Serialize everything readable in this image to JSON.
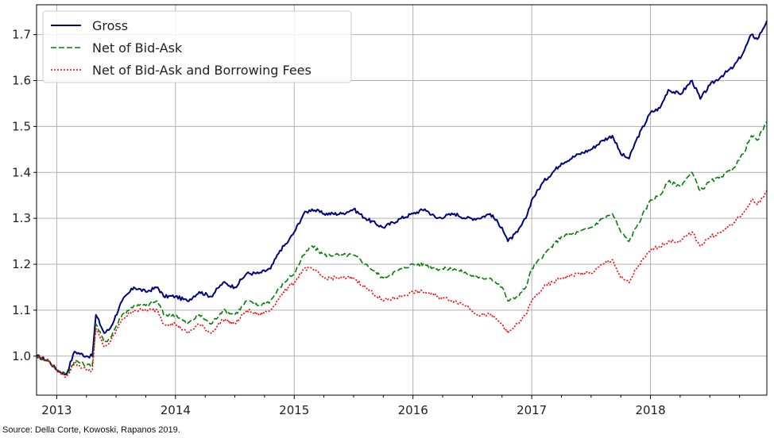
{
  "chart_data": {
    "type": "line",
    "xlim": [
      2012.83,
      2018.98
    ],
    "ylim": [
      0.915,
      1.765
    ],
    "x_ticks": [
      2013,
      2014,
      2015,
      2016,
      2017,
      2018
    ],
    "x_tick_labels": [
      "2013",
      "2014",
      "2015",
      "2016",
      "2017",
      "2018"
    ],
    "y_ticks": [
      1.0,
      1.1,
      1.2,
      1.3,
      1.4,
      1.5,
      1.6,
      1.7
    ],
    "y_tick_labels": [
      "1.0",
      "1.1",
      "1.2",
      "1.3",
      "1.4",
      "1.5",
      "1.6",
      "1.7"
    ],
    "grid": true,
    "legend_position": "top-left",
    "series": [
      {
        "name": "Gross",
        "color": "#00007f",
        "style": "solid",
        "x": [
          2012.83,
          2012.93,
          2013.0,
          2013.08,
          2013.15,
          2013.25,
          2013.3,
          2013.33,
          2013.4,
          2013.45,
          2013.55,
          2013.65,
          2013.75,
          2013.85,
          2013.9,
          2014.0,
          2014.1,
          2014.2,
          2014.3,
          2014.4,
          2014.5,
          2014.6,
          2014.7,
          2014.8,
          2014.88,
          2014.95,
          2015.0,
          2015.08,
          2015.15,
          2015.25,
          2015.4,
          2015.5,
          2015.6,
          2015.75,
          2015.9,
          2016.0,
          2016.1,
          2016.2,
          2016.35,
          2016.45,
          2016.55,
          2016.65,
          2016.75,
          2016.8,
          2016.88,
          2016.95,
          2017.0,
          2017.1,
          2017.25,
          2017.4,
          2017.5,
          2017.6,
          2017.68,
          2017.75,
          2017.82,
          2017.88,
          2018.0,
          2018.08,
          2018.15,
          2018.25,
          2018.35,
          2018.42,
          2018.5,
          2018.6,
          2018.7,
          2018.78,
          2018.85,
          2018.9,
          2018.98
        ],
        "y": [
          1.0,
          0.99,
          0.97,
          0.96,
          1.01,
          1.0,
          1.0,
          1.09,
          1.05,
          1.06,
          1.12,
          1.15,
          1.14,
          1.15,
          1.13,
          1.13,
          1.12,
          1.14,
          1.13,
          1.16,
          1.15,
          1.18,
          1.18,
          1.19,
          1.23,
          1.25,
          1.27,
          1.31,
          1.32,
          1.31,
          1.31,
          1.32,
          1.3,
          1.28,
          1.3,
          1.31,
          1.32,
          1.3,
          1.31,
          1.3,
          1.3,
          1.31,
          1.28,
          1.25,
          1.27,
          1.3,
          1.34,
          1.38,
          1.42,
          1.44,
          1.45,
          1.47,
          1.48,
          1.44,
          1.43,
          1.47,
          1.53,
          1.54,
          1.58,
          1.57,
          1.6,
          1.56,
          1.59,
          1.61,
          1.63,
          1.66,
          1.7,
          1.69,
          1.73
        ]
      },
      {
        "name": "Net of Bid-Ask",
        "color": "#008000",
        "style": "dashed",
        "x": [
          2012.83,
          2012.93,
          2013.0,
          2013.08,
          2013.15,
          2013.25,
          2013.3,
          2013.33,
          2013.4,
          2013.45,
          2013.55,
          2013.65,
          2013.75,
          2013.85,
          2013.9,
          2014.0,
          2014.1,
          2014.2,
          2014.3,
          2014.4,
          2014.5,
          2014.6,
          2014.7,
          2014.8,
          2014.88,
          2014.95,
          2015.0,
          2015.08,
          2015.15,
          2015.25,
          2015.4,
          2015.5,
          2015.6,
          2015.75,
          2015.9,
          2016.0,
          2016.1,
          2016.2,
          2016.35,
          2016.45,
          2016.55,
          2016.65,
          2016.75,
          2016.8,
          2016.88,
          2016.95,
          2017.0,
          2017.1,
          2017.25,
          2017.4,
          2017.5,
          2017.6,
          2017.68,
          2017.75,
          2017.82,
          2017.88,
          2018.0,
          2018.08,
          2018.15,
          2018.25,
          2018.35,
          2018.42,
          2018.5,
          2018.6,
          2018.7,
          2018.78,
          2018.85,
          2018.9,
          2018.98
        ],
        "y": [
          1.0,
          0.99,
          0.97,
          0.96,
          0.99,
          0.98,
          0.98,
          1.07,
          1.03,
          1.04,
          1.09,
          1.11,
          1.11,
          1.12,
          1.09,
          1.09,
          1.07,
          1.09,
          1.07,
          1.1,
          1.09,
          1.12,
          1.11,
          1.12,
          1.15,
          1.17,
          1.18,
          1.22,
          1.24,
          1.22,
          1.22,
          1.22,
          1.2,
          1.17,
          1.19,
          1.2,
          1.2,
          1.19,
          1.19,
          1.18,
          1.17,
          1.17,
          1.15,
          1.12,
          1.13,
          1.15,
          1.19,
          1.22,
          1.26,
          1.27,
          1.28,
          1.3,
          1.31,
          1.27,
          1.25,
          1.28,
          1.34,
          1.35,
          1.38,
          1.37,
          1.4,
          1.36,
          1.38,
          1.39,
          1.41,
          1.44,
          1.48,
          1.47,
          1.51
        ]
      },
      {
        "name": "Net of Bid-Ask and Borrowing Fees",
        "color": "#ff0000",
        "style": "dotted",
        "x": [
          2012.83,
          2012.93,
          2013.0,
          2013.08,
          2013.15,
          2013.25,
          2013.3,
          2013.33,
          2013.4,
          2013.45,
          2013.55,
          2013.65,
          2013.75,
          2013.85,
          2013.9,
          2014.0,
          2014.1,
          2014.2,
          2014.3,
          2014.4,
          2014.5,
          2014.6,
          2014.7,
          2014.8,
          2014.88,
          2014.95,
          2015.0,
          2015.08,
          2015.15,
          2015.25,
          2015.4,
          2015.5,
          2015.6,
          2015.75,
          2015.9,
          2016.0,
          2016.1,
          2016.2,
          2016.35,
          2016.45,
          2016.55,
          2016.65,
          2016.75,
          2016.8,
          2016.88,
          2016.95,
          2017.0,
          2017.1,
          2017.25,
          2017.4,
          2017.5,
          2017.6,
          2017.68,
          2017.75,
          2017.82,
          2017.88,
          2018.0,
          2018.08,
          2018.15,
          2018.25,
          2018.35,
          2018.42,
          2018.5,
          2018.6,
          2018.7,
          2018.78,
          2018.85,
          2018.9,
          2018.98
        ],
        "y": [
          1.0,
          0.99,
          0.97,
          0.955,
          0.985,
          0.97,
          0.97,
          1.06,
          1.02,
          1.03,
          1.08,
          1.1,
          1.1,
          1.1,
          1.07,
          1.07,
          1.05,
          1.07,
          1.05,
          1.08,
          1.07,
          1.1,
          1.09,
          1.1,
          1.13,
          1.15,
          1.16,
          1.19,
          1.19,
          1.17,
          1.17,
          1.17,
          1.15,
          1.12,
          1.13,
          1.14,
          1.14,
          1.13,
          1.12,
          1.11,
          1.09,
          1.09,
          1.07,
          1.05,
          1.07,
          1.09,
          1.12,
          1.15,
          1.17,
          1.18,
          1.18,
          1.2,
          1.21,
          1.17,
          1.16,
          1.19,
          1.23,
          1.24,
          1.25,
          1.25,
          1.27,
          1.24,
          1.26,
          1.27,
          1.29,
          1.31,
          1.34,
          1.33,
          1.36
        ]
      }
    ]
  },
  "source_text": "Source: Della Corte, Kowoski, Rapanos 2019."
}
